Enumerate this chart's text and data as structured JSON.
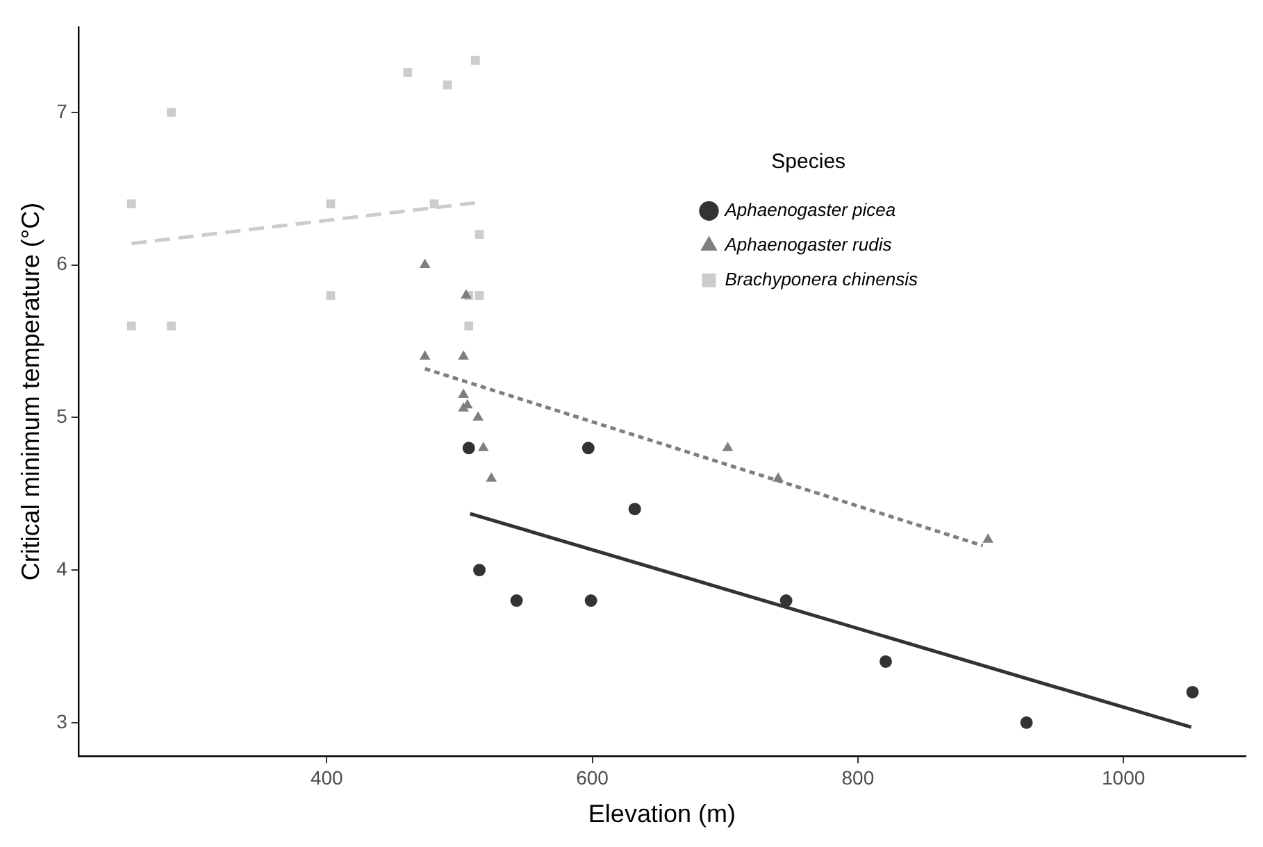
{
  "chart_data": {
    "type": "scatter",
    "xlabel": "Elevation (m)",
    "ylabel": "Critical minimum temperature (°C)",
    "legend_title": "Species",
    "legend": "top right",
    "xlim": [
      213,
      1092
    ],
    "xticks": [
      400,
      600,
      800,
      1000
    ],
    "ylim": [
      2.78,
      7.56
    ],
    "yticks": [
      3,
      4,
      5,
      6,
      7
    ],
    "grid": false,
    "series": [
      {
        "name": "Aphaenogaster picea",
        "color": "#333333",
        "marker": "circle",
        "x": [
          507,
          597,
          632,
          515,
          543,
          599,
          746,
          821,
          927,
          1052
        ],
        "values": [
          4.8,
          4.8,
          4.4,
          4.0,
          3.8,
          3.8,
          3.8,
          3.4,
          3.0,
          3.2
        ]
      },
      {
        "name": "Aphaenogaster rudis",
        "color": "#7f7f7f",
        "marker": "triangle",
        "x": [
          474,
          474,
          503,
          505,
          503,
          506,
          503,
          514,
          518,
          524,
          702,
          740,
          898
        ],
        "values": [
          6.0,
          5.4,
          5.4,
          5.8,
          5.15,
          5.08,
          5.06,
          5.0,
          4.8,
          4.6,
          4.8,
          4.6,
          4.2
        ]
      },
      {
        "name": "Brachyponera chinensis",
        "color": "#cccccc",
        "marker": "square",
        "x": [
          253,
          283,
          253,
          283,
          403,
          403,
          461,
          491,
          512,
          481,
          515,
          507,
          515,
          507
        ],
        "values": [
          6.4,
          7.0,
          5.6,
          5.6,
          6.4,
          5.8,
          7.26,
          7.18,
          7.34,
          6.4,
          6.2,
          5.8,
          5.8,
          5.6
        ]
      },
      {
        "type": "line",
        "color": "#333333",
        "line_style": "solid",
        "marker": "none",
        "x": [
          508,
          1051
        ],
        "values": [
          4.37,
          2.97
        ]
      },
      {
        "type": "line",
        "color": "#7f7f7f",
        "line_style": "dotted",
        "marker": "none",
        "x": [
          474,
          894
        ],
        "values": [
          5.32,
          4.16
        ]
      },
      {
        "type": "line",
        "color": "#cccccc",
        "line_style": "dashed",
        "marker": "none",
        "x": [
          253,
          515
        ],
        "values": [
          6.14,
          6.41
        ]
      }
    ]
  }
}
